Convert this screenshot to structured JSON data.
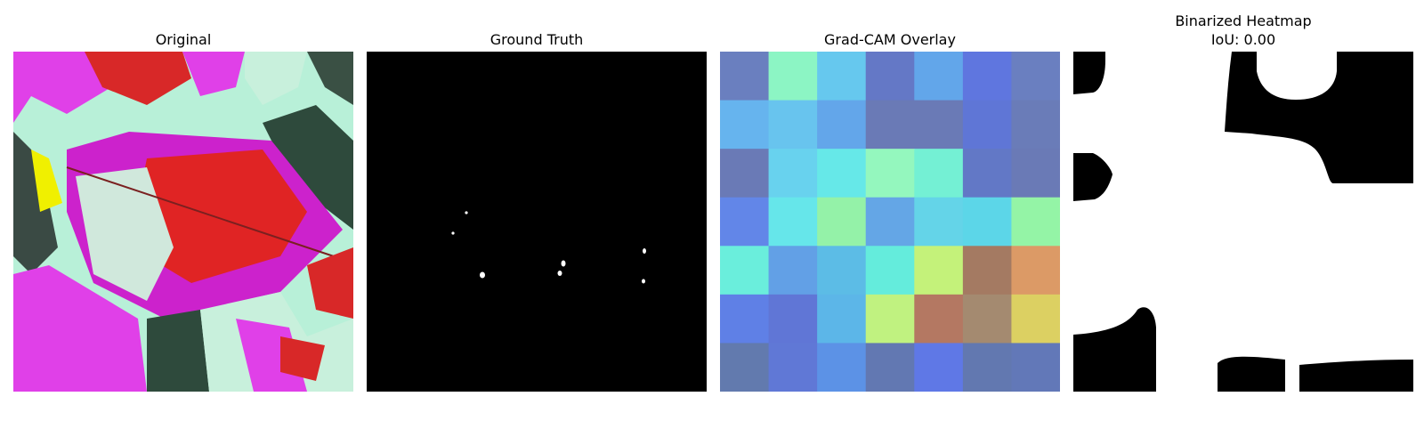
{
  "panels": {
    "original": {
      "title": "Original"
    },
    "ground_truth": {
      "title": "Ground Truth"
    },
    "gradcam": {
      "title": "Grad-CAM Overlay",
      "grid": [
        [
          "#6a7fbf",
          "#8cf5c4",
          "#66c8ee",
          "#6478c6",
          "#62a6ea",
          "#5f76df",
          "#6a7fc0"
        ],
        [
          "#66b4ee",
          "#68c4ee",
          "#63a6ea",
          "#6a7ab6",
          "#6a7ab6",
          "#5f76d6",
          "#6a7cb8"
        ],
        [
          "#6a7ab6",
          "#68d2ee",
          "#66e8e8",
          "#94f7be",
          "#74f0d4",
          "#6278c6",
          "#6a7ab6"
        ],
        [
          "#6286e8",
          "#66e6ea",
          "#94f2a8",
          "#64a6e6",
          "#64d4e8",
          "#5cd6e8",
          "#94f4a6"
        ],
        [
          "#6aeedc",
          "#62a0e6",
          "#5cbce6",
          "#64ecdc",
          "#c4f27a",
          "#a47a62",
          "#dc9a66"
        ],
        [
          "#5f80e6",
          "#6076d6",
          "#5cb6e8",
          "#c0f280",
          "#b47862",
          "#a48a70",
          "#dcd062"
        ],
        [
          "#627aae",
          "#6078d6",
          "#5c92e6",
          "#6278b2",
          "#5f78e6",
          "#6278b0",
          "#6278b8"
        ]
      ]
    },
    "binarized": {
      "title": "Binarized Heatmap",
      "iou": "IoU: 0.00"
    }
  }
}
